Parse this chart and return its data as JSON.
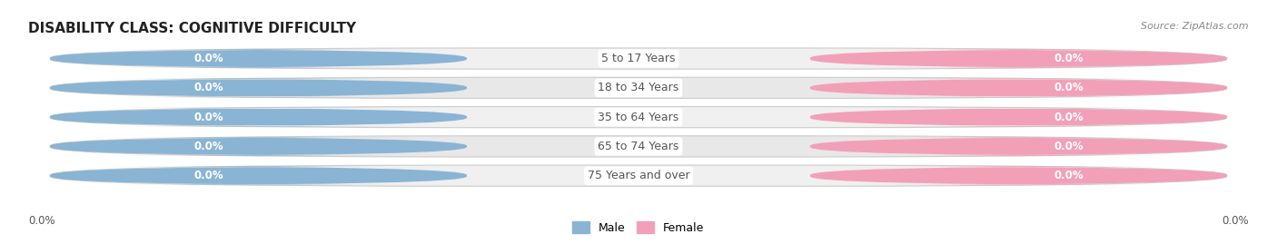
{
  "title": "DISABILITY CLASS: COGNITIVE DIFFICULTY",
  "source": "Source: ZipAtlas.com",
  "categories": [
    "5 to 17 Years",
    "18 to 34 Years",
    "35 to 64 Years",
    "65 to 74 Years",
    "75 Years and over"
  ],
  "male_values": [
    0.0,
    0.0,
    0.0,
    0.0,
    0.0
  ],
  "female_values": [
    0.0,
    0.0,
    0.0,
    0.0,
    0.0
  ],
  "male_color": "#8ab4d4",
  "female_color": "#f2a0b8",
  "male_label": "Male",
  "female_label": "Female",
  "row_bg_color_odd": "#f0f0f0",
  "row_bg_color_even": "#e8e8e8",
  "background_color": "#ffffff",
  "title_fontsize": 11,
  "label_value_left": "0.0%",
  "label_value_right": "0.0%",
  "center_label_color": "#555555",
  "value_label_color": "#ffffff"
}
